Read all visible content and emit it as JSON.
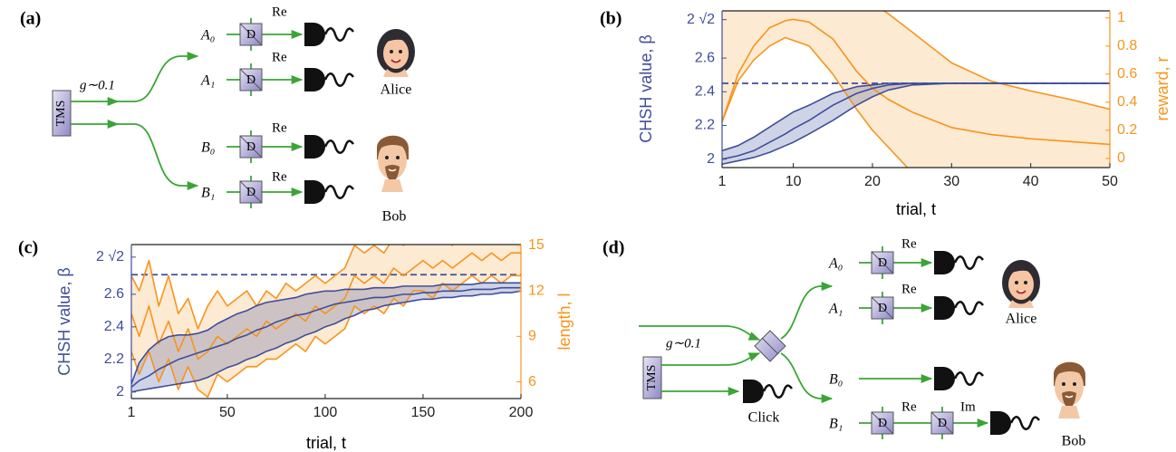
{
  "panel_a": {
    "label": "(a)",
    "source": "TMS",
    "gain": "g∼0.1",
    "modes": [
      "A₀",
      "A₁",
      "B₀",
      "B₁"
    ],
    "operations": [
      "Re",
      "Re",
      "Re",
      "Re"
    ],
    "displacements": [
      "D",
      "D",
      "D",
      "D"
    ],
    "parties": [
      "Alice",
      "Bob"
    ]
  },
  "panel_d": {
    "label": "(d)",
    "source": "TMS",
    "gain": "g∼0.1",
    "herald": "Click",
    "modes": [
      "A₀",
      "A₁",
      "B₀",
      "B₁"
    ],
    "operations": [
      "Re",
      "Re",
      "Re",
      "Im"
    ],
    "displacements": [
      "D",
      "D",
      "D",
      "D"
    ],
    "parties": [
      "Alice",
      "Bob"
    ]
  },
  "chart_data": [
    {
      "type": "line",
      "label": "(b)",
      "x_label": "trial, t",
      "y_label": "CHSH value, β",
      "y2_label": "reward, r",
      "x": [
        1,
        3,
        5,
        7,
        9,
        10,
        12,
        15,
        18,
        20,
        22,
        25,
        30,
        35,
        40,
        45,
        50
      ],
      "xlim": [
        1,
        50
      ],
      "xticks": [
        1,
        10,
        20,
        30,
        40,
        50
      ],
      "ylim": [
        1.95,
        2.88
      ],
      "yticks": [
        2,
        2.2,
        2.4,
        2.6,
        {
          "value": 2.828,
          "label": "2 √2"
        }
      ],
      "y2lim": [
        -0.065,
        1.05
      ],
      "y2ticks": [
        0,
        0.2,
        0.4,
        0.6,
        0.8,
        1
      ],
      "hline": 2.45,
      "series": [
        {
          "color": "#3f4e9a",
          "values": [
            2.0,
            2.02,
            2.05,
            2.1,
            2.15,
            2.18,
            2.23,
            2.32,
            2.39,
            2.42,
            2.44,
            2.45,
            2.45,
            2.45,
            2.45,
            2.45,
            2.45
          ],
          "upper": [
            2.05,
            2.08,
            2.13,
            2.19,
            2.25,
            2.28,
            2.32,
            2.39,
            2.43,
            2.44,
            2.45,
            2.45,
            2.45,
            2.45,
            2.45,
            2.45,
            2.45
          ],
          "lower": [
            1.97,
            1.99,
            2.01,
            2.04,
            2.08,
            2.1,
            2.15,
            2.23,
            2.32,
            2.37,
            2.41,
            2.44,
            2.45,
            2.45,
            2.45,
            2.45,
            2.45
          ]
        },
        {
          "color": "#f7941d",
          "axis": "y2",
          "values": [
            0.26,
            0.6,
            0.8,
            0.93,
            0.98,
            0.99,
            0.97,
            0.85,
            0.62,
            0.5,
            0.42,
            0.33,
            0.22,
            0.17,
            0.14,
            0.12,
            0.1
          ],
          "upper": [
            1.2,
            1.2,
            1.2,
            1.2,
            1.2,
            1.2,
            1.2,
            1.2,
            1.15,
            1.1,
            1.03,
            0.9,
            0.68,
            0.55,
            0.48,
            0.42,
            0.35
          ],
          "lower": [
            0.26,
            0.55,
            0.7,
            0.8,
            0.86,
            0.84,
            0.8,
            0.6,
            0.35,
            0.2,
            0.08,
            -0.1,
            -0.3,
            -0.3,
            -0.3,
            -0.3,
            -0.3
          ]
        }
      ]
    },
    {
      "type": "line",
      "label": "(c)",
      "x_label": "trial, t",
      "y_label": "CHSH value, β",
      "y2_label": "length, l",
      "x": [
        1,
        5,
        10,
        15,
        20,
        25,
        30,
        35,
        40,
        45,
        50,
        55,
        60,
        65,
        70,
        75,
        80,
        85,
        90,
        95,
        100,
        105,
        110,
        115,
        120,
        125,
        130,
        135,
        140,
        145,
        150,
        155,
        160,
        165,
        170,
        175,
        180,
        185,
        190,
        195,
        200
      ],
      "xlim": [
        1,
        200
      ],
      "xticks": [
        1,
        50,
        100,
        150,
        200
      ],
      "ylim": [
        1.96,
        2.905
      ],
      "yticks": [
        2,
        2.2,
        2.4,
        2.6,
        {
          "value": 2.828,
          "label": "2 √2"
        }
      ],
      "y2lim": [
        4.9,
        15.05
      ],
      "y2ticks": [
        6,
        9,
        12,
        15
      ],
      "hline": 2.72,
      "series": [
        {
          "color": "#3f4e9a",
          "values": [
            2.03,
            2.07,
            2.1,
            2.14,
            2.17,
            2.2,
            2.22,
            2.24,
            2.26,
            2.28,
            2.3,
            2.33,
            2.35,
            2.38,
            2.4,
            2.43,
            2.45,
            2.47,
            2.48,
            2.5,
            2.52,
            2.54,
            2.55,
            2.56,
            2.57,
            2.58,
            2.58,
            2.59,
            2.6,
            2.6,
            2.61,
            2.61,
            2.62,
            2.62,
            2.62,
            2.63,
            2.63,
            2.63,
            2.64,
            2.64,
            2.64
          ],
          "upper": [
            2.05,
            2.18,
            2.26,
            2.31,
            2.34,
            2.35,
            2.35,
            2.36,
            2.38,
            2.42,
            2.45,
            2.48,
            2.5,
            2.53,
            2.55,
            2.56,
            2.57,
            2.58,
            2.6,
            2.61,
            2.62,
            2.62,
            2.63,
            2.63,
            2.63,
            2.64,
            2.64,
            2.64,
            2.65,
            2.65,
            2.65,
            2.65,
            2.66,
            2.66,
            2.66,
            2.66,
            2.67,
            2.67,
            2.67,
            2.67,
            2.67
          ],
          "lower": [
            2.0,
            2.01,
            2.02,
            2.03,
            2.04,
            2.05,
            2.06,
            2.07,
            2.09,
            2.12,
            2.15,
            2.17,
            2.2,
            2.22,
            2.25,
            2.27,
            2.3,
            2.32,
            2.35,
            2.37,
            2.4,
            2.42,
            2.45,
            2.47,
            2.5,
            2.51,
            2.53,
            2.54,
            2.55,
            2.56,
            2.57,
            2.57,
            2.58,
            2.58,
            2.59,
            2.59,
            2.6,
            2.6,
            2.61,
            2.61,
            2.62
          ]
        },
        {
          "color": "#f7941d",
          "axis": "y2",
          "values": [
            10.5,
            9,
            11,
            8.5,
            10,
            8,
            9.5,
            7.5,
            8,
            9,
            8.5,
            9,
            9.5,
            9,
            10,
            9.5,
            10,
            10.5,
            10,
            11,
            10.5,
            11,
            11.5,
            13,
            12.5,
            13,
            12.5,
            13.5,
            13,
            13.5,
            14,
            13.5,
            14,
            13.5,
            14,
            14.5,
            14,
            14.5,
            14,
            14.5,
            14.5
          ],
          "upper": [
            13,
            12,
            14,
            11,
            13,
            10.5,
            11.5,
            9.5,
            11,
            12,
            11,
            11.5,
            12,
            11,
            12,
            11.5,
            12.5,
            12,
            12.5,
            13,
            12.5,
            13,
            13.5,
            15,
            14.5,
            15,
            14.5,
            15.5,
            15,
            15.5,
            16,
            15.5,
            15.5,
            15,
            16,
            16,
            15.5,
            16,
            15.5,
            16,
            16
          ],
          "lower": [
            8,
            6.5,
            8,
            6,
            7.5,
            5.5,
            7,
            5.5,
            5,
            6.5,
            6,
            6.5,
            7,
            7,
            7.5,
            7.5,
            8,
            8.5,
            8,
            9,
            8.5,
            9,
            9.5,
            11,
            10.5,
            11,
            10.5,
            11.5,
            11,
            12,
            12,
            11.5,
            12.5,
            12,
            12.5,
            13,
            12.5,
            13,
            12.5,
            13,
            13
          ]
        }
      ]
    }
  ]
}
